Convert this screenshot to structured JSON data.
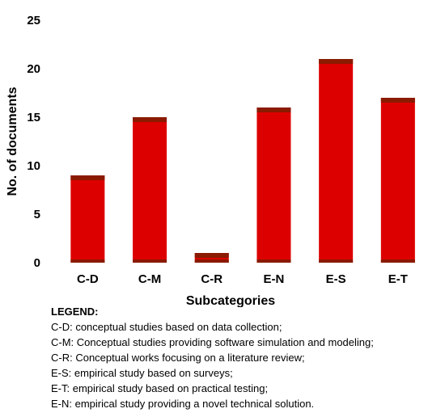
{
  "chart_data": {
    "type": "bar",
    "categories": [
      "C-D",
      "C-M",
      "C-R",
      "E-N",
      "E-S",
      "E-T"
    ],
    "values": [
      9,
      15,
      1,
      16,
      21,
      17
    ],
    "xlabel": "Subcategories",
    "ylabel": "No. of documents",
    "ylim": [
      0,
      25
    ],
    "yticks": [
      0,
      5,
      10,
      15,
      20,
      25
    ],
    "grid": false,
    "colors": {
      "bar_fill": "#dd0000",
      "bar_cap": "#8a1a00"
    }
  },
  "legend": {
    "title": "LEGEND:",
    "entries": [
      "C-D: conceptual studies based on data collection;",
      "C-M: Conceptual studies providing software simulation and modeling;",
      "C-R: Conceptual works focusing on a literature review;",
      "E-S: empirical study based on surveys;",
      "E-T: empirical study based on practical testing;",
      "E-N: empirical study providing a novel technical solution."
    ]
  }
}
